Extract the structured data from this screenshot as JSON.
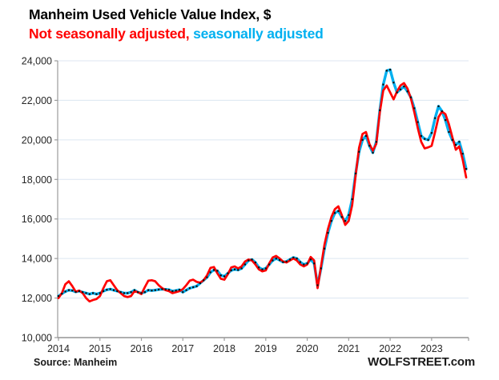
{
  "header": {
    "title": "Manheim Used Vehicle Value Index, $",
    "legend_nsa": "Not seasonally adjusted,",
    "legend_sa": " seasonally adjusted"
  },
  "footer": {
    "source": "Source: Manheim",
    "watermark": "WOLFSTREET.com"
  },
  "colors": {
    "nsa_red": "#ff0000",
    "sa_cyan": "#00b0f0",
    "marker_black": "#111111",
    "gridline": "#dce6f1",
    "axis": "#9b9b9b",
    "tick_text": "#262626"
  },
  "chart_data": {
    "type": "line",
    "title": "Manheim Used Vehicle Value Index, $",
    "x_tick_labels": [
      "2014",
      "2015",
      "2016",
      "2017",
      "2018",
      "2019",
      "2020",
      "2021",
      "2022",
      "2023"
    ],
    "months_per_point": 1,
    "x_range_note": "monthly points, Jan 2014 through Nov 2023",
    "ylim": [
      10000,
      24000
    ],
    "y_ticks": [
      10000,
      12000,
      14000,
      16000,
      18000,
      20000,
      22000,
      24000
    ],
    "y_tick_labels": [
      "10,000",
      "12,000",
      "14,000",
      "16,000",
      "18,000",
      "20,000",
      "22,000",
      "24,000"
    ],
    "grid": "horizontal",
    "legend_position": "top-as-subtitle",
    "series": [
      {
        "name": "Seasonally adjusted",
        "color": "#00b0f0",
        "style": "thick line with black square markers",
        "values": [
          12100,
          12220,
          12330,
          12400,
          12380,
          12310,
          12350,
          12300,
          12250,
          12200,
          12250,
          12200,
          12250,
          12350,
          12420,
          12450,
          12400,
          12350,
          12300,
          12250,
          12250,
          12300,
          12400,
          12300,
          12250,
          12300,
          12400,
          12380,
          12400,
          12430,
          12450,
          12440,
          12420,
          12350,
          12380,
          12420,
          12300,
          12400,
          12500,
          12550,
          12600,
          12750,
          12900,
          13050,
          13300,
          13420,
          13380,
          13150,
          13100,
          13250,
          13400,
          13450,
          13420,
          13500,
          13700,
          13900,
          13950,
          13800,
          13550,
          13450,
          13500,
          13700,
          13900,
          14000,
          13920,
          13820,
          13850,
          13950,
          14050,
          14000,
          13820,
          13700,
          13750,
          13950,
          13750,
          12650,
          13500,
          14500,
          15300,
          15900,
          16300,
          16400,
          16100,
          15900,
          16200,
          17000,
          18300,
          19400,
          20000,
          20200,
          19700,
          19350,
          19900,
          21500,
          22800,
          23500,
          23550,
          22900,
          22400,
          22550,
          22700,
          22450,
          22150,
          21600,
          20900,
          20200,
          20050,
          20000,
          20350,
          21100,
          21700,
          21450,
          21000,
          20400,
          20000,
          19750,
          19900,
          19300,
          18530
        ]
      },
      {
        "name": "Not seasonally adjusted",
        "color": "#ff0000",
        "style": "solid",
        "values": [
          12000,
          12250,
          12700,
          12850,
          12600,
          12320,
          12380,
          12250,
          12000,
          11830,
          11900,
          11950,
          12100,
          12500,
          12850,
          12900,
          12650,
          12400,
          12250,
          12100,
          12050,
          12100,
          12350,
          12300,
          12200,
          12550,
          12880,
          12900,
          12850,
          12650,
          12500,
          12400,
          12350,
          12250,
          12300,
          12350,
          12450,
          12650,
          12880,
          12930,
          12820,
          12780,
          12900,
          13150,
          13530,
          13570,
          13250,
          12980,
          12930,
          13200,
          13550,
          13600,
          13500,
          13600,
          13850,
          13950,
          13900,
          13700,
          13450,
          13350,
          13400,
          13750,
          14050,
          14130,
          14000,
          13850,
          13800,
          13900,
          14000,
          13900,
          13700,
          13600,
          13700,
          14080,
          13900,
          12500,
          13600,
          14700,
          15500,
          16100,
          16500,
          16640,
          16200,
          15700,
          15900,
          16700,
          18200,
          19600,
          20300,
          20400,
          19800,
          19450,
          19800,
          21400,
          22500,
          22750,
          22400,
          22050,
          22450,
          22750,
          22870,
          22600,
          22100,
          21400,
          20600,
          19900,
          19570,
          19620,
          19700,
          20400,
          21150,
          21430,
          21300,
          20800,
          20150,
          19500,
          19670,
          19000,
          18100
        ]
      }
    ]
  }
}
